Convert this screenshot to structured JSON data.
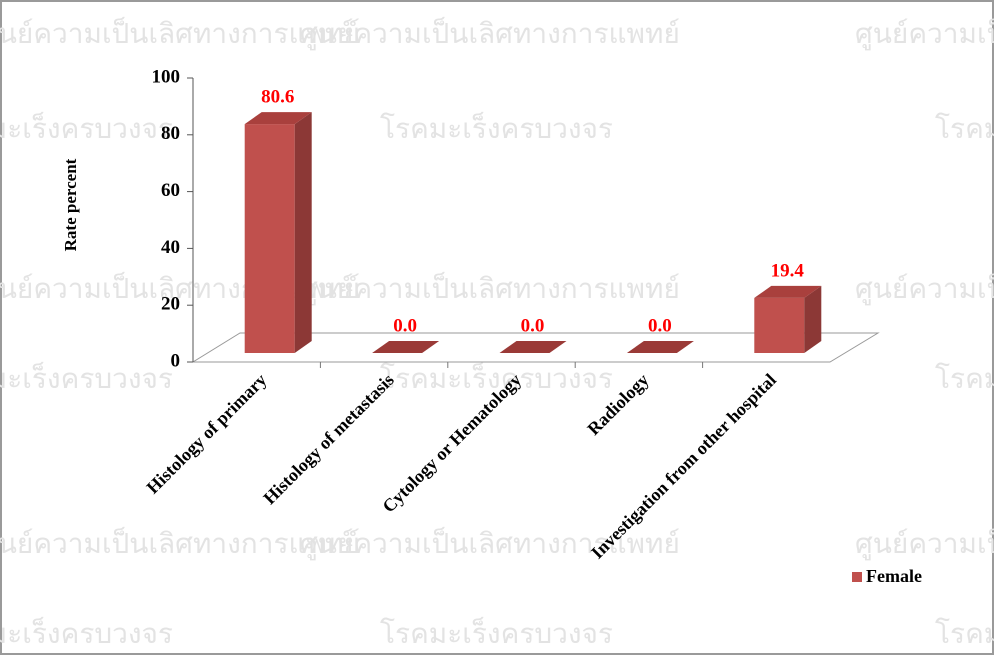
{
  "chart_data": {
    "type": "bar3d",
    "y_label": "Rate percent",
    "categories": [
      "Histology of primary",
      "Histology of metastasis",
      "Cytology or Hematology",
      "Radiology",
      "Investigation from other hospital"
    ],
    "series": [
      {
        "name": "Female",
        "color": "#c0504d",
        "values": [
          80.6,
          0.0,
          0.0,
          0.0,
          19.4
        ],
        "value_labels": [
          "80.6",
          "0.0",
          "0.0",
          "0.0",
          "19.4"
        ]
      }
    ],
    "ylim": [
      0,
      100
    ],
    "yticks": [
      0,
      20,
      40,
      60,
      80,
      100
    ],
    "legend": "bottom-right",
    "watermarks": [
      "ศูนย์ความเป็นเลิศทางการแพทย์",
      "โรคมะเร็งครบวงจร"
    ]
  }
}
